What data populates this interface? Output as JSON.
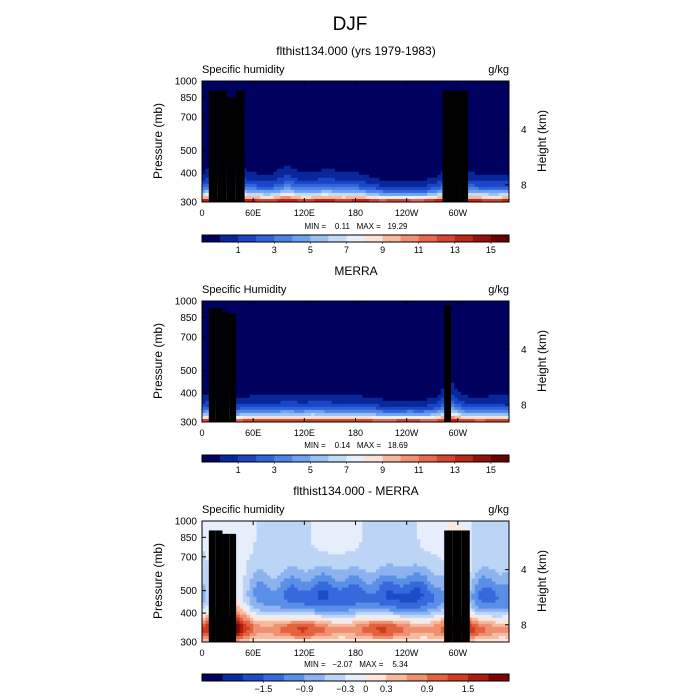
{
  "figure": {
    "title": "DJF"
  },
  "chart_data": [
    {
      "type": "heatmap",
      "title": "flthist134.000 (yrs 1979-1983)",
      "field_label": "Specific humidity",
      "units_label": "g/kg",
      "ylabel": "Pressure (mb)",
      "ylabel_right": "Height (km)",
      "x_ticks": [
        "0",
        "60E",
        "120E",
        "180",
        "120W",
        "60W"
      ],
      "x_tick_lon": [
        0,
        60,
        120,
        180,
        240,
        300
      ],
      "xlim": [
        0,
        360
      ],
      "y_ticks": [
        "300",
        "400",
        "500",
        "700",
        "850",
        "1000"
      ],
      "y_tick_p": [
        300,
        400,
        500,
        700,
        850,
        1000
      ],
      "ylim": [
        1000,
        300
      ],
      "y_log_scale": true,
      "right_ticks": [
        "8",
        "4"
      ],
      "right_tick_km": [
        8,
        4
      ],
      "stats_text": "MIN =    0.11   MAX =   19.29",
      "min": 0.11,
      "max": 19.29,
      "colorbar": {
        "levels": [
          0,
          1,
          2,
          3,
          4,
          5,
          6,
          7,
          8,
          9,
          10,
          11,
          12,
          13,
          14,
          15,
          16
        ],
        "labels": [
          "1",
          "3",
          "5",
          "7",
          "9",
          "11",
          "13",
          "15"
        ],
        "label_values": [
          1,
          3,
          5,
          7,
          9,
          11,
          13,
          15
        ],
        "colors": [
          "#00005e",
          "#08279b",
          "#1c45c6",
          "#2f64dc",
          "#4b84e6",
          "#6fa2ee",
          "#98c1f2",
          "#c2dbf6",
          "#e7eefc",
          "#fbe2d8",
          "#f7b99e",
          "#f29171",
          "#e9694e",
          "#d8452f",
          "#bb2719",
          "#93100c",
          "#6a0103"
        ]
      },
      "land_masks": [
        {
          "region": "Africa",
          "lon": [
            8,
            50
          ],
          "p_top": [
            910,
            910,
            850,
            910
          ]
        },
        {
          "region": "South America",
          "lon": [
            282,
            312
          ],
          "p_top": [
            910,
            910,
            910
          ]
        }
      ]
    },
    {
      "type": "heatmap",
      "title": "MERRA",
      "field_label": "Specific Humidity",
      "units_label": "g/kg",
      "ylabel": "Pressure (mb)",
      "ylabel_right": "Height (km)",
      "x_ticks": [
        "0",
        "60E",
        "120E",
        "180",
        "120W",
        "60W"
      ],
      "x_tick_lon": [
        0,
        60,
        120,
        180,
        240,
        300
      ],
      "xlim": [
        0,
        360
      ],
      "y_ticks": [
        "300",
        "400",
        "500",
        "700",
        "850",
        "1000"
      ],
      "y_tick_p": [
        300,
        400,
        500,
        700,
        850,
        1000
      ],
      "ylim": [
        1000,
        300
      ],
      "y_log_scale": true,
      "right_ticks": [
        "8",
        "4"
      ],
      "right_tick_km": [
        8,
        4
      ],
      "stats_text": "MIN =    0.14   MAX =   18.69",
      "min": 0.14,
      "max": 18.69,
      "colorbar": {
        "levels": [
          0,
          1,
          2,
          3,
          4,
          5,
          6,
          7,
          8,
          9,
          10,
          11,
          12,
          13,
          14,
          15,
          16
        ],
        "labels": [
          "1",
          "3",
          "5",
          "7",
          "9",
          "11",
          "13",
          "15"
        ],
        "label_values": [
          1,
          3,
          5,
          7,
          9,
          11,
          13,
          15
        ],
        "colors": [
          "#00005e",
          "#08279b",
          "#1c45c6",
          "#2f64dc",
          "#4b84e6",
          "#6fa2ee",
          "#98c1f2",
          "#c2dbf6",
          "#e7eefc",
          "#fbe2d8",
          "#f7b99e",
          "#f29171",
          "#e9694e",
          "#d8452f",
          "#bb2719",
          "#93100c",
          "#6a0103"
        ]
      },
      "land_masks": [
        {
          "region": "Africa",
          "lon": [
            8,
            40
          ],
          "p_top": [
            930,
            930,
            900,
            880
          ]
        },
        {
          "region": "South America",
          "lon": [
            284,
            292
          ],
          "p_top": [
            960
          ]
        }
      ]
    },
    {
      "type": "heatmap",
      "title": "flthist134.000 - MERRA",
      "field_label": "Specific humidity",
      "units_label": "g/kg",
      "ylabel": "Pressure (mb)",
      "ylabel_right": "Height (km)",
      "x_ticks": [
        "0",
        "60E",
        "120E",
        "180",
        "120W",
        "60W"
      ],
      "x_tick_lon": [
        0,
        60,
        120,
        180,
        240,
        300
      ],
      "xlim": [
        0,
        360
      ],
      "y_ticks": [
        "300",
        "400",
        "500",
        "700",
        "850",
        "1000"
      ],
      "y_tick_p": [
        300,
        400,
        500,
        700,
        850,
        1000
      ],
      "ylim": [
        1000,
        300
      ],
      "y_log_scale": true,
      "right_ticks": [
        "8",
        "4"
      ],
      "right_tick_km": [
        8,
        4
      ],
      "stats_text": "MIN =   −2.07   MAX =    5.34",
      "min": -2.07,
      "max": 5.34,
      "colorbar": {
        "levels": [
          -2.1,
          -1.8,
          -1.5,
          -1.2,
          -0.9,
          -0.6,
          -0.3,
          0,
          0.3,
          0.6,
          0.9,
          1.2,
          1.5,
          1.8,
          2.1
        ],
        "labels": [
          "−1.5",
          "−0.9",
          "−0.3",
          "0",
          "0.3",
          "0.9",
          "1.5"
        ],
        "label_values": [
          -1.5,
          -0.9,
          -0.3,
          0,
          0.3,
          0.9,
          1.5
        ],
        "colors": [
          "#00005e",
          "#0a2c9e",
          "#1d4cc8",
          "#3569dc",
          "#5a8fe8",
          "#8cb3f0",
          "#bcd5f6",
          "#e6eefb",
          "#fde6da",
          "#f6bba0",
          "#ef9070",
          "#e3623f",
          "#d03b22",
          "#ac1d10",
          "#7e0506"
        ]
      },
      "land_masks": [
        {
          "region": "Africa",
          "lon": [
            8,
            40
          ],
          "p_top": [
            910,
            910,
            880,
            880
          ]
        },
        {
          "region": "South America",
          "lon": [
            284,
            314
          ],
          "p_top": [
            910,
            910,
            910
          ]
        }
      ]
    }
  ]
}
